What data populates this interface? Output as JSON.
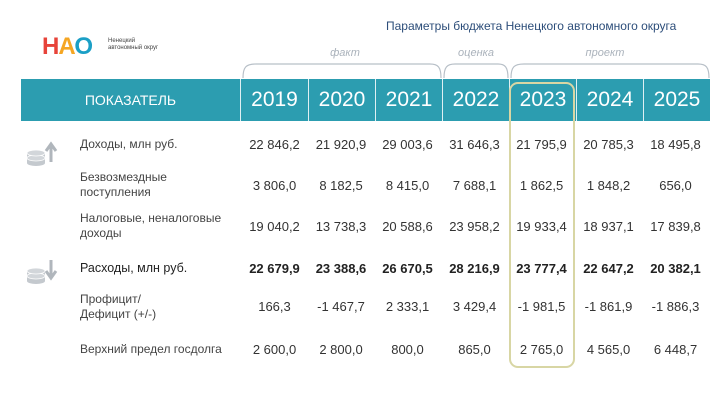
{
  "logo": {
    "letters": [
      "Н",
      "А",
      "О"
    ],
    "subtitle": "Ненецкий автономный округ"
  },
  "title": "Параметры бюджета Ненецкого автономного округа",
  "groups": {
    "fact": "факт",
    "estimate": "оценка",
    "project": "проект"
  },
  "table": {
    "header_label": "ПОКАЗАТЕЛЬ",
    "years": [
      "2019",
      "2020",
      "2021",
      "2022",
      "2023",
      "2024",
      "2025"
    ],
    "rows": [
      {
        "label": "Доходы, млн руб.",
        "values": [
          "22 846,2",
          "21 920,9",
          "29 003,6",
          "31 646,3",
          "21 795,9",
          "20 785,3",
          "18 495,8"
        ]
      },
      {
        "label1": "Безвозмездные",
        "label2": "поступления",
        "values": [
          "3 806,0",
          "8 182,5",
          "8 415,0",
          "7 688,1",
          "1 862,5",
          "1 848,2",
          "656,0"
        ]
      },
      {
        "label1": "Налоговые, неналоговые",
        "label2": "доходы",
        "values": [
          "19 040,2",
          "13 738,3",
          "20 588,6",
          "23 958,2",
          "19 933,4",
          "18 937,1",
          "17 839,8"
        ]
      },
      {
        "label": "Расходы, млн руб.",
        "values": [
          "22 679,9",
          "23 388,6",
          "26 670,5",
          "28 216,9",
          "23 777,4",
          "22 647,2",
          "20 382,1"
        ]
      },
      {
        "label1": "Профицит/",
        "label2": "Дефицит (+/-)",
        "values": [
          "166,3",
          "-1 467,7",
          "2 333,1",
          "3 429,4",
          "-1 981,5",
          "-1 861,9",
          "-1 886,3"
        ]
      },
      {
        "label": "Верхний предел госдолга",
        "values": [
          "2 600,0",
          "2 800,0",
          "800,0",
          "865,0",
          "2 765,0",
          "4 565,0",
          "6 448,7"
        ]
      }
    ]
  },
  "icons": {
    "income": "coins-arrow-up-icon",
    "expense": "coins-arrow-down-icon"
  },
  "colors": {
    "header_bg": "#2c9db0",
    "highlight_border": "#d8d6a4",
    "title": "#2d4e7a"
  }
}
